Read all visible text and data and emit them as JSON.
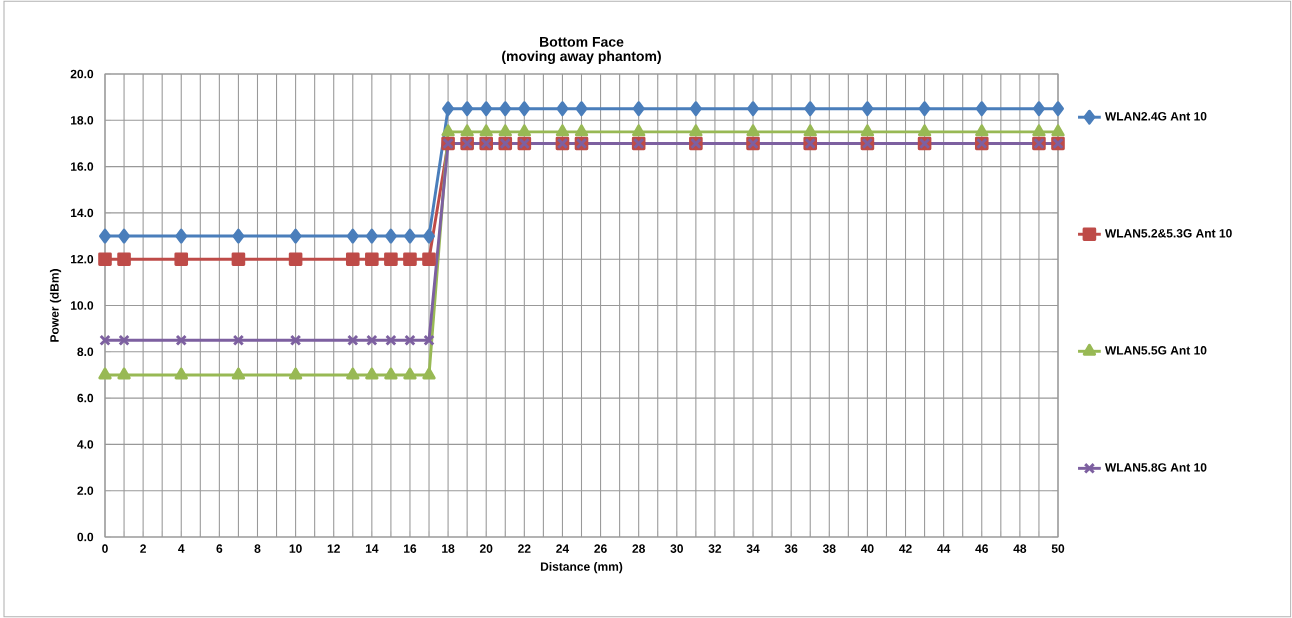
{
  "chart_data": {
    "type": "line",
    "title": "Bottom Face",
    "subtitle": "(moving away phantom)",
    "xlabel": "Distance (mm)",
    "ylabel": "Power (dBm)",
    "x": [
      0,
      1,
      4,
      7,
      10,
      13,
      14,
      15,
      16,
      17,
      18,
      19,
      20,
      21,
      22,
      24,
      25,
      28,
      31,
      34,
      37,
      40,
      43,
      46,
      49,
      50
    ],
    "series": [
      {
        "name": "WLAN2.4G Ant 10",
        "color": "#4a7ebb",
        "marker": "diamond",
        "values": [
          13,
          13,
          13,
          13,
          13,
          13,
          13,
          13,
          13,
          13,
          18.5,
          18.5,
          18.5,
          18.5,
          18.5,
          18.5,
          18.5,
          18.5,
          18.5,
          18.5,
          18.5,
          18.5,
          18.5,
          18.5,
          18.5,
          18.5
        ]
      },
      {
        "name": "WLAN5.2&5.3G Ant 10",
        "color": "#be4b48",
        "marker": "square",
        "values": [
          12,
          12,
          12,
          12,
          12,
          12,
          12,
          12,
          12,
          12,
          17,
          17,
          17,
          17,
          17,
          17,
          17,
          17,
          17,
          17,
          17,
          17,
          17,
          17,
          17,
          17
        ]
      },
      {
        "name": "WLAN5.5G Ant 10",
        "color": "#98b954",
        "marker": "triangle",
        "values": [
          7,
          7,
          7,
          7,
          7,
          7,
          7,
          7,
          7,
          7,
          17.5,
          17.5,
          17.5,
          17.5,
          17.5,
          17.5,
          17.5,
          17.5,
          17.5,
          17.5,
          17.5,
          17.5,
          17.5,
          17.5,
          17.5,
          17.5
        ]
      },
      {
        "name": "WLAN5.8G Ant 10",
        "color": "#7d60a0",
        "marker": "cross",
        "values": [
          8.5,
          8.5,
          8.5,
          8.5,
          8.5,
          8.5,
          8.5,
          8.5,
          8.5,
          8.5,
          17,
          17,
          17,
          17,
          17,
          17,
          17,
          17,
          17,
          17,
          17,
          17,
          17,
          17,
          17,
          17
        ]
      }
    ],
    "xlim": [
      0,
      50
    ],
    "xticks": [
      0,
      {
        "value": 1,
        "label": null
      },
      2,
      {
        "value": 3,
        "label": null
      },
      4,
      {
        "value": 5,
        "label": null
      },
      6,
      {
        "value": 7,
        "label": null
      },
      8,
      {
        "value": 9,
        "label": null
      },
      10,
      {
        "value": 11,
        "label": null
      },
      12,
      {
        "value": 13,
        "label": null
      },
      14,
      {
        "value": 15,
        "label": null
      },
      16,
      {
        "value": 17,
        "label": null
      },
      18,
      {
        "value": 19,
        "label": null
      },
      20,
      {
        "value": 21,
        "label": null
      },
      22,
      {
        "value": 23,
        "label": null
      },
      24,
      {
        "value": 25,
        "label": null
      },
      26,
      {
        "value": 27,
        "label": null
      },
      28,
      {
        "value": 29,
        "label": null
      },
      30,
      {
        "value": 31,
        "label": null
      },
      32,
      {
        "value": 33,
        "label": null
      },
      34,
      {
        "value": 35,
        "label": null
      },
      36,
      {
        "value": 37,
        "label": null
      },
      38,
      {
        "value": 39,
        "label": null
      },
      40,
      {
        "value": 41,
        "label": null
      },
      42,
      {
        "value": 43,
        "label": null
      },
      44,
      {
        "value": 45,
        "label": null
      },
      46,
      {
        "value": 47,
        "label": null
      },
      48,
      {
        "value": 49,
        "label": null
      },
      50
    ],
    "ylim": [
      0,
      20
    ],
    "yticks": [
      {
        "value": 0,
        "label": "0.0"
      },
      {
        "value": 2,
        "label": "2.0"
      },
      {
        "value": 4,
        "label": "4.0"
      },
      {
        "value": 6,
        "label": "6.0"
      },
      {
        "value": 8,
        "label": "8.0"
      },
      {
        "value": 10,
        "label": "10.0"
      },
      {
        "value": 12,
        "label": "12.0"
      },
      {
        "value": 14,
        "label": "14.0"
      },
      {
        "value": 16,
        "label": "16.0"
      },
      {
        "value": 18,
        "label": "18.0"
      },
      {
        "value": 20,
        "label": "20.0"
      }
    ],
    "grid": true,
    "legend": "right",
    "line_style": "solid"
  }
}
